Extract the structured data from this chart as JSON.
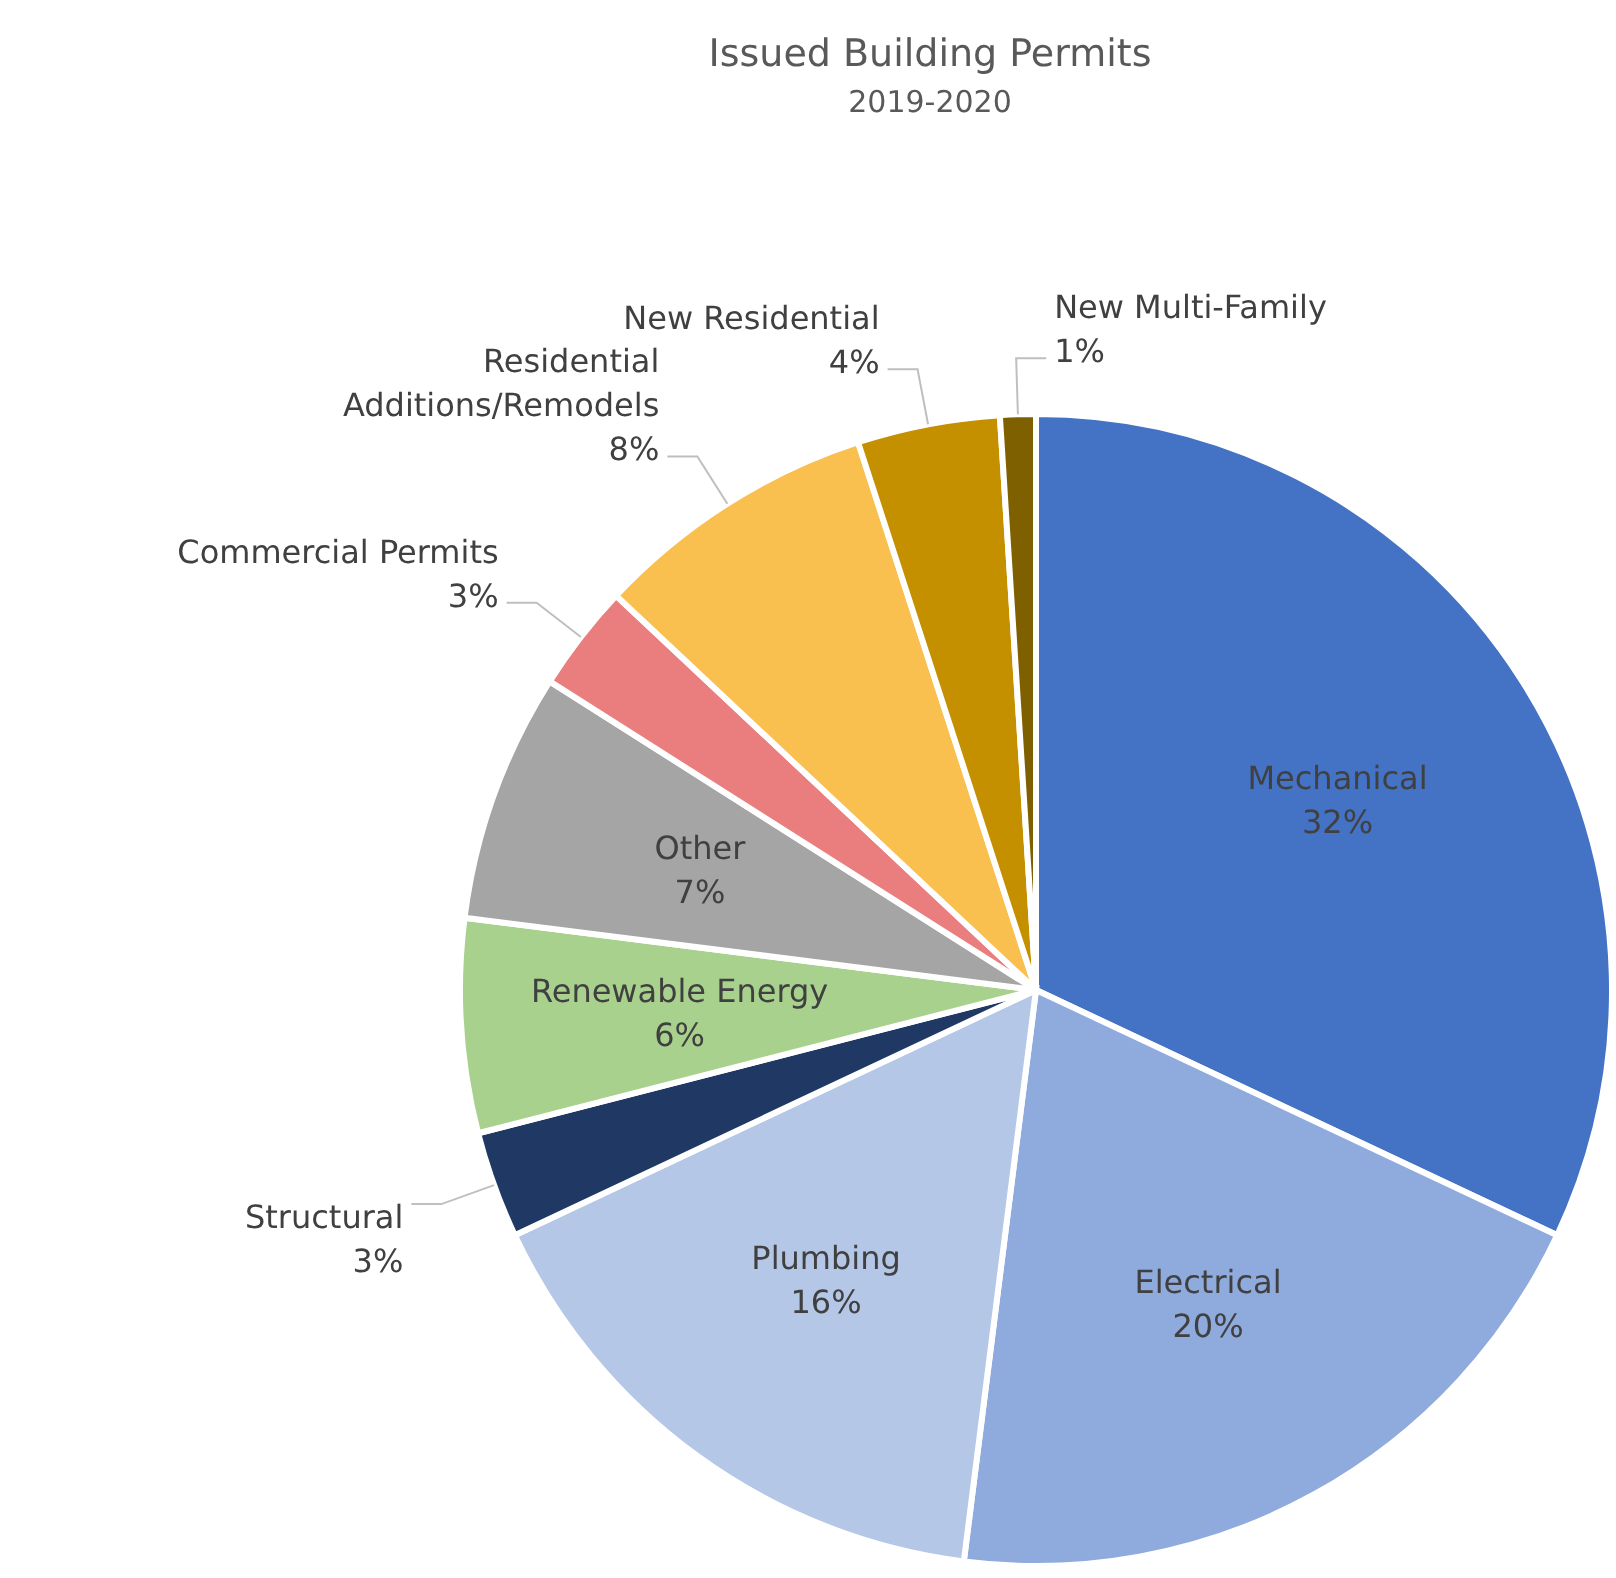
{
  "chart_data": {
    "type": "pie",
    "title": "Issued Building Permits",
    "subtitle": "2019-2020",
    "categories": [
      "Mechanical",
      "Electrical",
      "Plumbing",
      "Structural",
      "Renewable Energy",
      "Other",
      "Commercial Permits",
      "Residential Additions/Remodels",
      "New Residential",
      "New Multi-Family"
    ],
    "values": [
      32,
      20,
      16,
      3,
      6,
      7,
      3,
      8,
      4,
      1
    ],
    "value_labels": [
      "32%",
      "20%",
      "16%",
      "3%",
      "6%",
      "7%",
      "3%",
      "8%",
      "4%",
      "1%"
    ],
    "colors": [
      "#4472c4",
      "#8faadc",
      "#b4c7e7",
      "#203864",
      "#a9d18e",
      "#a5a5a5",
      "#ea7e7e",
      "#f9bf4f",
      "#c49000",
      "#7f6000"
    ]
  }
}
